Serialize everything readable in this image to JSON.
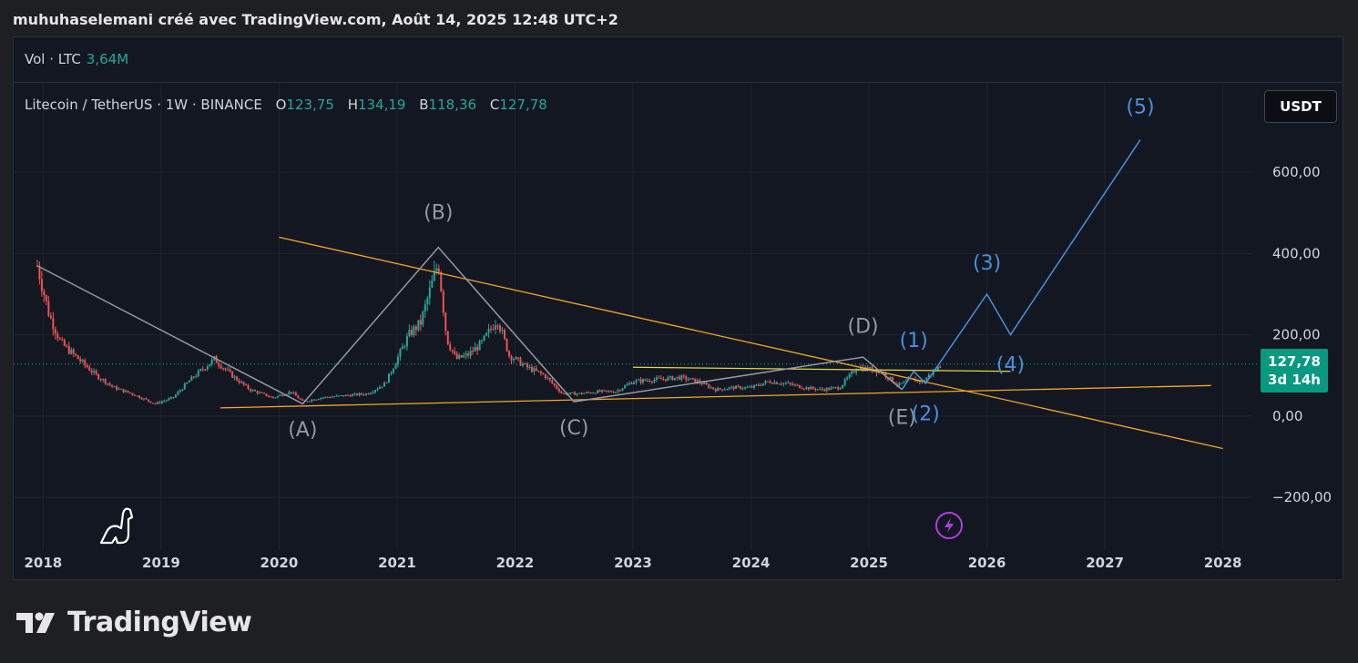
{
  "header": {
    "text": "muhuhaselemani créé avec TradingView.com, Août 14, 2025 12:48 UTC+2"
  },
  "volume": {
    "label": "Vol · LTC",
    "value": "3,64M"
  },
  "legend": {
    "symbol": "Litecoin / TetherUS · 1W · BINANCE",
    "open_key": "O",
    "open": "123,75",
    "high_key": "H",
    "high": "134,19",
    "low_key": "B",
    "low": "118,36",
    "close_key": "C",
    "close": "127,78"
  },
  "currency_button": "USDT",
  "price_tag": {
    "price": "127,78",
    "countdown": "3d 14h"
  },
  "footer": {
    "brand": "TradingView"
  },
  "colors": {
    "up": "#26a69a",
    "down": "#ef5350",
    "wave": "#9598a1",
    "impulse": "#4a90d9",
    "trendline": "#f5a623",
    "horizontal": "#e6d44a",
    "background": "#131722"
  },
  "chart_data": {
    "type": "candlestick",
    "symbol": "LTC/USDT",
    "timeframe": "1W",
    "xlim": [
      2017.75,
      2028.25
    ],
    "ylim": [
      -330,
      820
    ],
    "y_ticks": [
      {
        "v": 600,
        "label": "600,00"
      },
      {
        "v": 400,
        "label": "400,00"
      },
      {
        "v": 200,
        "label": "200,00"
      },
      {
        "v": 0,
        "label": "0,00"
      },
      {
        "v": -200,
        "label": "−200,00"
      }
    ],
    "x_ticks": [
      {
        "v": 2018,
        "label": "2018"
      },
      {
        "v": 2019,
        "label": "2019"
      },
      {
        "v": 2020,
        "label": "2020"
      },
      {
        "v": 2021,
        "label": "2021"
      },
      {
        "v": 2022,
        "label": "2022"
      },
      {
        "v": 2023,
        "label": "2023"
      },
      {
        "v": 2024,
        "label": "2024"
      },
      {
        "v": 2025,
        "label": "2025"
      },
      {
        "v": 2026,
        "label": "2026"
      },
      {
        "v": 2027,
        "label": "2027"
      },
      {
        "v": 2028,
        "label": "2028"
      }
    ],
    "price_path": [
      [
        2017.95,
        370
      ],
      [
        2018.05,
        250
      ],
      [
        2018.15,
        180
      ],
      [
        2018.3,
        140
      ],
      [
        2018.45,
        100
      ],
      [
        2018.6,
        70
      ],
      [
        2018.75,
        55
      ],
      [
        2018.95,
        30
      ],
      [
        2019.1,
        45
      ],
      [
        2019.25,
        90
      ],
      [
        2019.45,
        140
      ],
      [
        2019.6,
        100
      ],
      [
        2019.75,
        65
      ],
      [
        2019.95,
        45
      ],
      [
        2020.1,
        60
      ],
      [
        2020.2,
        35
      ],
      [
        2020.35,
        45
      ],
      [
        2020.55,
        50
      ],
      [
        2020.75,
        55
      ],
      [
        2020.9,
        80
      ],
      [
        2021.0,
        140
      ],
      [
        2021.1,
        200
      ],
      [
        2021.2,
        230
      ],
      [
        2021.35,
        380
      ],
      [
        2021.42,
        190
      ],
      [
        2021.5,
        140
      ],
      [
        2021.6,
        150
      ],
      [
        2021.72,
        180
      ],
      [
        2021.85,
        240
      ],
      [
        2021.95,
        150
      ],
      [
        2022.1,
        120
      ],
      [
        2022.25,
        100
      ],
      [
        2022.4,
        55
      ],
      [
        2022.55,
        55
      ],
      [
        2022.7,
        60
      ],
      [
        2022.85,
        60
      ],
      [
        2023.0,
        85
      ],
      [
        2023.2,
        90
      ],
      [
        2023.4,
        95
      ],
      [
        2023.55,
        85
      ],
      [
        2023.7,
        65
      ],
      [
        2023.85,
        70
      ],
      [
        2024.0,
        70
      ],
      [
        2024.15,
        85
      ],
      [
        2024.3,
        80
      ],
      [
        2024.45,
        70
      ],
      [
        2024.6,
        65
      ],
      [
        2024.75,
        70
      ],
      [
        2024.9,
        120
      ],
      [
        2025.0,
        115
      ],
      [
        2025.1,
        110
      ],
      [
        2025.25,
        75
      ],
      [
        2025.35,
        90
      ],
      [
        2025.45,
        85
      ],
      [
        2025.55,
        110
      ],
      [
        2025.62,
        127.78
      ]
    ],
    "current_price": 127.78,
    "current_price_label": "127,78",
    "trendlines": [
      {
        "name": "upper-resistance-trendline",
        "color": "trendline",
        "points": [
          [
            2020.0,
            440
          ],
          [
            2028.0,
            -80
          ]
        ]
      },
      {
        "name": "lower-support-trendline",
        "color": "trendline",
        "points": [
          [
            2019.5,
            20
          ],
          [
            2027.9,
            75
          ]
        ]
      },
      {
        "name": "horizontal-level-line",
        "color": "horizontal",
        "points": [
          [
            2023.0,
            120
          ],
          [
            2026.2,
            110
          ]
        ]
      }
    ],
    "corrective_wave": [
      [
        2017.95,
        370
      ],
      [
        2020.2,
        30
      ],
      [
        2021.35,
        415
      ],
      [
        2022.5,
        35
      ],
      [
        2024.95,
        145
      ],
      [
        2025.28,
        65
      ]
    ],
    "impulse_wave": [
      [
        2025.28,
        65
      ],
      [
        2025.38,
        110
      ],
      [
        2025.48,
        80
      ],
      [
        2026.0,
        300
      ],
      [
        2026.2,
        200
      ],
      [
        2027.3,
        680
      ]
    ],
    "wave_labels": [
      {
        "text": "(A)",
        "x": 2020.2,
        "y": -50,
        "color": "wave"
      },
      {
        "text": "(B)",
        "x": 2021.35,
        "y": 485,
        "color": "wave"
      },
      {
        "text": "(C)",
        "x": 2022.5,
        "y": -45,
        "color": "wave"
      },
      {
        "text": "(D)",
        "x": 2024.95,
        "y": 205,
        "color": "wave"
      },
      {
        "text": "(E)",
        "x": 2025.28,
        "y": -20,
        "color": "wave"
      },
      {
        "text": "(1)",
        "x": 2025.38,
        "y": 170,
        "color": "impulse"
      },
      {
        "text": "(2)",
        "x": 2025.48,
        "y": -10,
        "color": "impulse"
      },
      {
        "text": "(3)",
        "x": 2026.0,
        "y": 360,
        "color": "impulse"
      },
      {
        "text": "(4)",
        "x": 2026.2,
        "y": 110,
        "color": "impulse"
      },
      {
        "text": "(5)",
        "x": 2027.3,
        "y": 745,
        "color": "impulse"
      }
    ]
  }
}
